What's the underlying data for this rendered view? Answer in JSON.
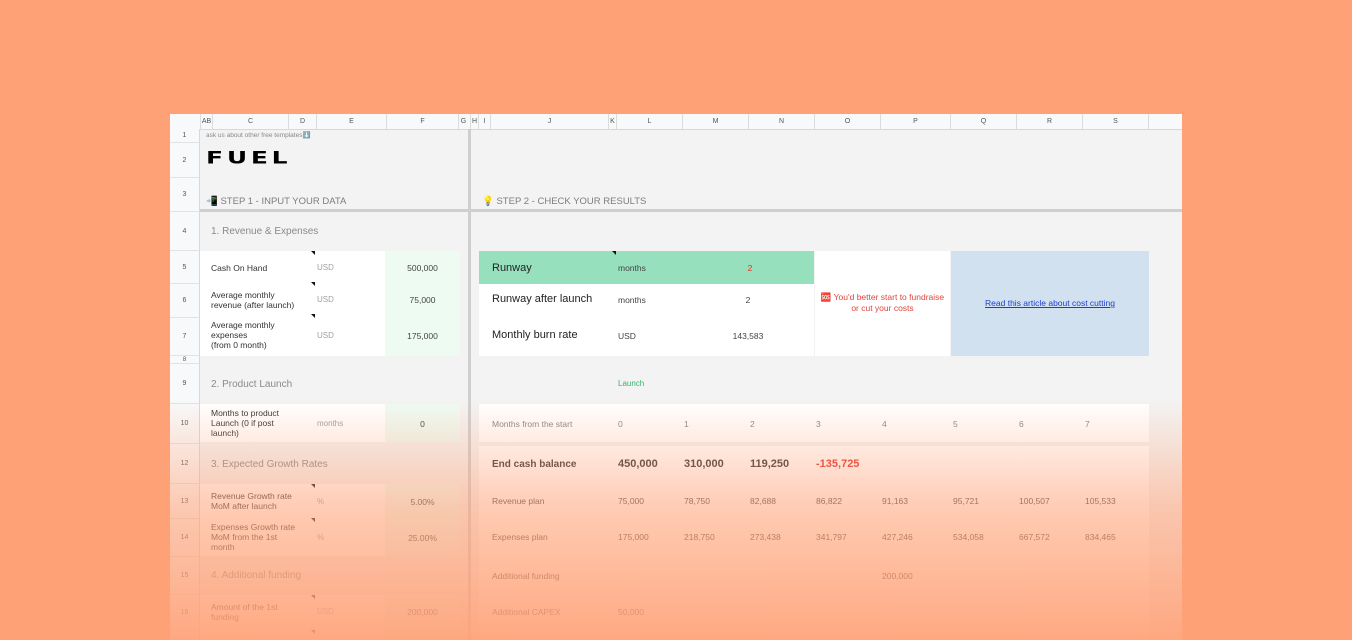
{
  "columns": [
    "AB",
    "C",
    "D",
    "E",
    "F",
    "G",
    "H",
    "I",
    "J",
    "K",
    "L",
    "M",
    "N",
    "O",
    "P",
    "Q",
    "R",
    "S"
  ],
  "rows": [
    "1",
    "2",
    "3",
    "4",
    "5",
    "6",
    "7",
    "8",
    "9",
    "10",
    "12",
    "13",
    "14",
    "15",
    "16"
  ],
  "banner": "ask us about other free templates⬇️",
  "logo": "FUEL",
  "step1": "📲 STEP 1 - INPUT YOUR DATA",
  "step2": "💡 STEP 2 - CHECK YOUR RESULTS",
  "left": {
    "sec1": "1. Revenue & Expenses",
    "cash_label": "Cash On Hand",
    "cash_unit": "USD",
    "cash_value": "500,000",
    "rev_label1": "Average monthly",
    "rev_label2": "revenue (after launch)",
    "rev_unit": "USD",
    "rev_value": "75,000",
    "exp_label1": "Average monthly",
    "exp_label2": "expenses",
    "exp_label3": "(from 0 month)",
    "exp_unit": "USD",
    "exp_value": "175,000",
    "sec2": "2. Product Launch",
    "launch_label1": "Months to product",
    "launch_label2": "Launch (0 if post",
    "launch_label3": "launch)",
    "launch_unit": "months",
    "launch_value": "0",
    "sec3": "3. Expected Growth Rates",
    "revg_label1": "Revenue Growth rate",
    "revg_label2": "MoM after launch",
    "revg_unit": "%",
    "revg_value": "5.00%",
    "expg_label1": "Expenses Growth rate",
    "expg_label2": "MoM from the 1st",
    "expg_label3": "month",
    "expg_unit": "%",
    "expg_value": "25.00%",
    "sec4": "4. Additional funding",
    "fund_label1": "Amount of the 1st",
    "fund_label2": "funding",
    "fund_unit": "USD",
    "fund_value": "200,000"
  },
  "results": {
    "runway_label": "Runway",
    "runway_unit": "months",
    "runway_value": "2",
    "runway_after_label": "Runway after launch",
    "runway_after_unit": "months",
    "runway_after_value": "2",
    "burn_label": "Monthly  burn rate",
    "burn_unit": "USD",
    "burn_value": "143,583",
    "warning": "🆘 You'd better start to fundraise or cut your costs",
    "article_link": "Read this article about cost cutting"
  },
  "launch_marker": "Launch",
  "table": {
    "months_label": "Months from the start",
    "months": [
      "0",
      "1",
      "2",
      "3",
      "4",
      "5",
      "6",
      "7"
    ],
    "end_cash_label": "End cash balance",
    "end_cash": [
      "450,000",
      "310,000",
      "119,250",
      "-135,725"
    ],
    "revenue_label": "Revenue plan",
    "revenue": [
      "75,000",
      "78,750",
      "82,688",
      "86,822",
      "91,163",
      "95,721",
      "100,507",
      "105,533"
    ],
    "expenses_label": "Expenses plan",
    "expenses": [
      "175,000",
      "218,750",
      "273,438",
      "341,797",
      "427,246",
      "534,058",
      "667,572",
      "834,465"
    ],
    "add_funding_label": "Additional funding",
    "add_funding_value": "200,000",
    "capex_label": "Additional CAPEX",
    "capex_value": "50,000"
  },
  "colors": {
    "background": "#ffa176",
    "runway_green": "#97e0bd",
    "link_box": "#d2e1f0",
    "negative": "#e0312b",
    "launch": "#34b36a"
  }
}
